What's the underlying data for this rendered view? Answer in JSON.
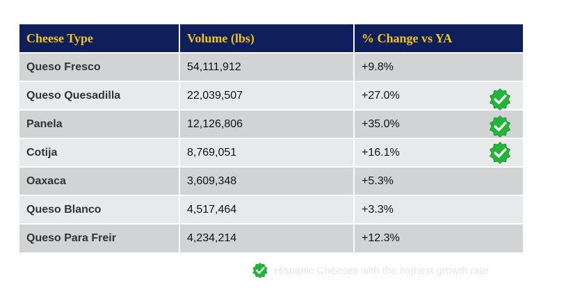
{
  "table": {
    "headers": [
      "Cheese Type",
      "Volume (lbs)",
      "% Change vs YA"
    ],
    "rows": [
      {
        "type": "Queso Fresco",
        "volume": "54,111,912",
        "change": "+9.8%",
        "top_growth": false
      },
      {
        "type": "Queso Quesadilla",
        "volume": "22,039,507",
        "change": "+27.0%",
        "top_growth": true
      },
      {
        "type": "Panela",
        "volume": "12,126,806",
        "change": "+35.0%",
        "top_growth": true
      },
      {
        "type": "Cotija",
        "volume": "8,769,051",
        "change": "+16.1%",
        "top_growth": true
      },
      {
        "type": "Oaxaca",
        "volume": "3,609,348",
        "change": "+5.3%",
        "top_growth": false
      },
      {
        "type": "Queso Blanco",
        "volume": "4,517,464",
        "change": "+3.3%",
        "top_growth": false
      },
      {
        "type": "Queso Para Freir",
        "volume": "4,234,214",
        "change": "+12.3%",
        "top_growth": false
      }
    ]
  },
  "legend": {
    "icon": "green-check-badge-icon",
    "text": "Hispanic Cheeses with the highest growth rate"
  },
  "colors": {
    "header_bg": "#0f1f5c",
    "header_text": "#f2c417",
    "row_dark": "#d2d3d4",
    "row_light": "#e8e9ea",
    "badge_green": "#22b53a"
  }
}
